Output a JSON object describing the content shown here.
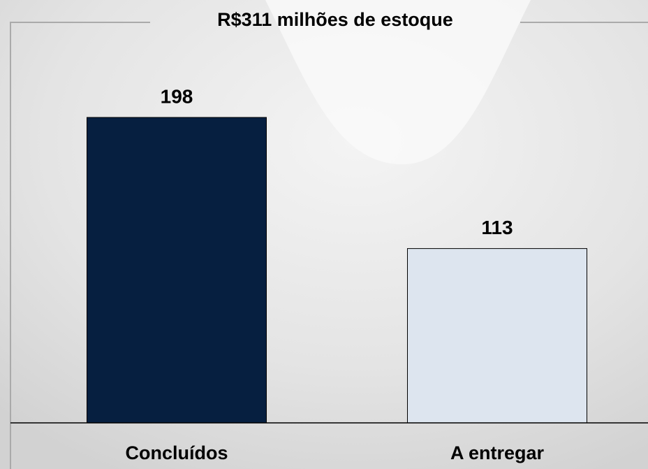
{
  "chart_data": {
    "type": "bar",
    "title": "R$311 milhões de estoque",
    "categories": [
      "Concluídos",
      "A entregar"
    ],
    "values": [
      198,
      113
    ],
    "colors": [
      "#061f40",
      "#dde5ef"
    ]
  }
}
